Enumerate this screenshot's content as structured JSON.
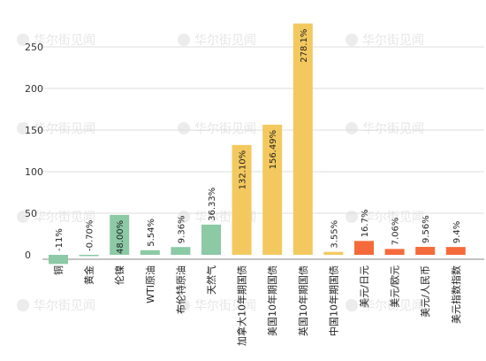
{
  "watermark_text": "华尔街见闻",
  "chart_data": {
    "type": "bar",
    "ylim": [
      -20,
      275
    ],
    "yticks": [
      0,
      50,
      100,
      150,
      200,
      250
    ],
    "grid": true,
    "legend": "none",
    "colors": {
      "green": "#8cc9a5",
      "yellow": "#f3c95f",
      "orange": "#f56a3a"
    },
    "bars": [
      {
        "category": "铜",
        "value": -11,
        "label": "-11%",
        "color": "green"
      },
      {
        "category": "黄金",
        "value": -0.7,
        "label": "-0.70%",
        "color": "green"
      },
      {
        "category": "伦镍",
        "value": 48.0,
        "label": "48.00%",
        "color": "green"
      },
      {
        "category": "WTI原油",
        "value": 5.54,
        "label": "5.54%",
        "color": "green"
      },
      {
        "category": "布伦特原油",
        "value": 9.36,
        "label": "9.36%",
        "color": "green"
      },
      {
        "category": "天然气",
        "value": 36.33,
        "label": "36.33%",
        "color": "green"
      },
      {
        "category": "加拿大10年期国债",
        "value": 132.1,
        "label": "132.10%",
        "color": "yellow"
      },
      {
        "category": "美国10年期国债",
        "value": 156.49,
        "label": "156.49%",
        "color": "yellow"
      },
      {
        "category": "英国10年期国债",
        "value": 278.1,
        "label": "278.1%",
        "color": "yellow"
      },
      {
        "category": "中国10年期国债",
        "value": 3.55,
        "label": "3.55%",
        "color": "yellow"
      },
      {
        "category": "美元/日元",
        "value": 16.7,
        "label": "16.7%",
        "color": "orange"
      },
      {
        "category": "美元/欧元",
        "value": 7.06,
        "label": "7.06%",
        "color": "orange"
      },
      {
        "category": "美元/人民币",
        "value": 9.56,
        "label": "9.56%",
        "color": "orange"
      },
      {
        "category": "美元指数指数",
        "value": 9.4,
        "label": "9.4%",
        "color": "orange"
      }
    ]
  }
}
